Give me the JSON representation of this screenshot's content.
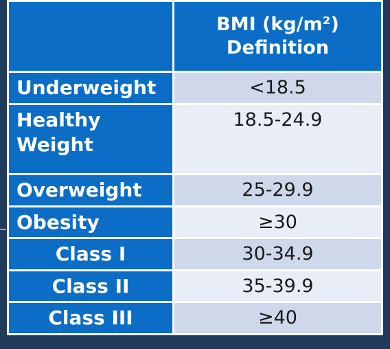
{
  "table": {
    "header": {
      "col_line1": "BMI (kg/m²)",
      "col_line2": "Definition"
    },
    "rows": [
      {
        "label": "Underweight",
        "value": "<18.5"
      },
      {
        "label": "Healthy Weight",
        "value": "18.5-24.9"
      },
      {
        "label": "Overweight",
        "value": "25-29.9"
      },
      {
        "label": "Obesity",
        "value": "≥30"
      },
      {
        "label": "Class I",
        "value": "30-34.9"
      },
      {
        "label": "Class II",
        "value": "35-39.9"
      },
      {
        "label": "Class III",
        "value": "≥40"
      }
    ]
  },
  "colors": {
    "header_blue": "#0b6dc6",
    "row_dark": "#cfd7ea",
    "row_light": "#e9edf6",
    "background": "#1f3a5b",
    "accent_mark": "#e39a2c"
  }
}
